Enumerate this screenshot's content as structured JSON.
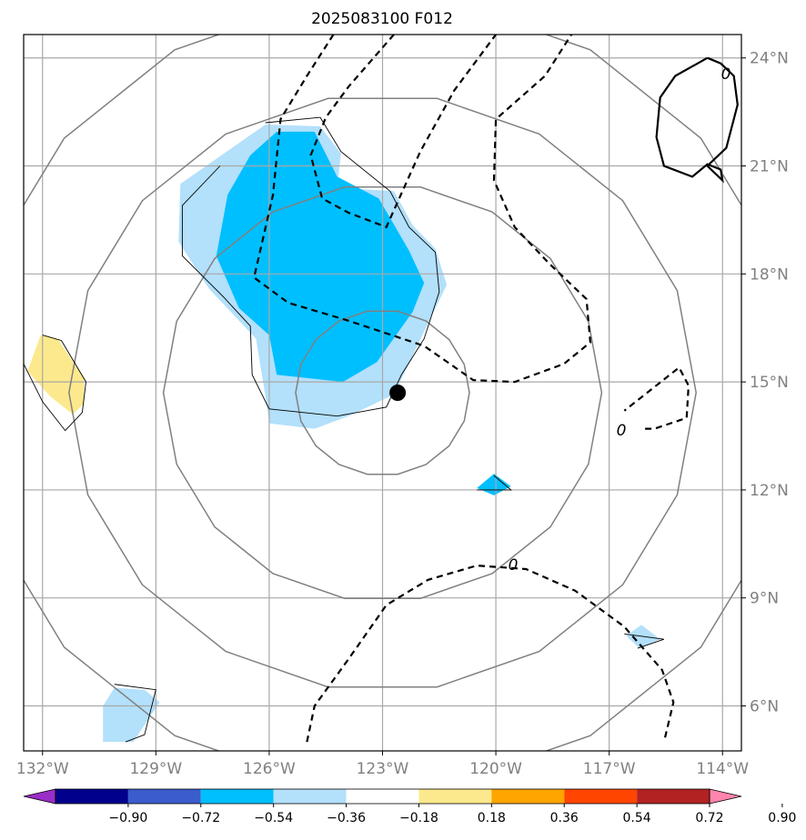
{
  "chart_data": {
    "type": "contour-map",
    "title": "2025083100 F012",
    "projection": "lat-lon",
    "xlim": [
      -132.5,
      -113.5
    ],
    "ylim": [
      4.75,
      24.65
    ],
    "x_ticks": [
      -132,
      -129,
      -126,
      -123,
      -120,
      -117,
      -114
    ],
    "x_tick_labels": [
      "132°W",
      "129°W",
      "126°W",
      "123°W",
      "120°W",
      "117°W",
      "114°W"
    ],
    "y_ticks": [
      6,
      9,
      12,
      15,
      18,
      21,
      24
    ],
    "y_tick_labels": [
      "6°N",
      "9°N",
      "12°N",
      "15°N",
      "18°N",
      "21°N",
      "24°N"
    ],
    "grid": true,
    "storm_center": {
      "lon": -122.6,
      "lat": 14.7
    },
    "range_rings_center": {
      "lon": -123.0,
      "lat": 14.7
    },
    "range_rings_radius_deg": [
      2.3,
      5.8,
      8.3,
      11.0
    ],
    "colorbar": {
      "levels": [
        "−0.90",
        "−0.72",
        "−0.54",
        "−0.36",
        "−0.18",
        "0.18",
        "0.36",
        "0.54",
        "0.72",
        "0.90"
      ],
      "colors": [
        "#9a2ec8",
        "#00008c",
        "#3a5ccc",
        "#00bfff",
        "#b3e0fb",
        "#ffffff",
        "#fde98d",
        "#ffa500",
        "#ff4500",
        "#b22222",
        "#ff85ac"
      ],
      "extend": "both"
    },
    "filled_regions": [
      {
        "level": "-0.36 to -0.18",
        "color": "#b3e0fb",
        "points": [
          [
            -126.1,
            22.15
          ],
          [
            -124.65,
            22.1
          ],
          [
            -124.1,
            21.35
          ],
          [
            -124.2,
            20.4
          ],
          [
            -122.7,
            20.3
          ],
          [
            -122.2,
            19.35
          ],
          [
            -121.6,
            18.7
          ],
          [
            -121.3,
            17.7
          ],
          [
            -121.9,
            16.4
          ],
          [
            -122.7,
            14.65
          ],
          [
            -123.9,
            14.05
          ],
          [
            -124.8,
            13.7
          ],
          [
            -126.0,
            13.85
          ],
          [
            -126.1,
            14.6
          ],
          [
            -126.35,
            16.2
          ],
          [
            -127.6,
            17.6
          ],
          [
            -128.4,
            18.9
          ],
          [
            -128.35,
            20.5
          ]
        ]
      },
      {
        "level": "<= -0.36",
        "color": "#00bfff",
        "points": [
          [
            -125.8,
            21.95
          ],
          [
            -124.8,
            21.95
          ],
          [
            -124.2,
            20.7
          ],
          [
            -123.1,
            20.1
          ],
          [
            -122.3,
            18.65
          ],
          [
            -121.9,
            17.75
          ],
          [
            -122.2,
            16.95
          ],
          [
            -123.15,
            15.55
          ],
          [
            -124.05,
            15.0
          ],
          [
            -125.8,
            15.2
          ],
          [
            -126.0,
            16.3
          ],
          [
            -126.8,
            17.05
          ],
          [
            -127.4,
            18.5
          ],
          [
            -127.1,
            20.2
          ],
          [
            -126.5,
            21.3
          ]
        ]
      },
      {
        "level": "<= -0.36",
        "color": "#00bfff",
        "points": [
          [
            -120.05,
            12.45
          ],
          [
            -119.6,
            12.1
          ],
          [
            -120.05,
            11.85
          ],
          [
            -120.5,
            12.05
          ]
        ]
      },
      {
        "level": "-0.36 to -0.18",
        "color": "#b3e0fb",
        "points": [
          [
            -116.15,
            8.25
          ],
          [
            -115.65,
            7.85
          ],
          [
            -116.2,
            7.6
          ],
          [
            -116.55,
            7.95
          ]
        ]
      },
      {
        "level": "-0.36 to -0.18",
        "color": "#b3e0fb",
        "points": [
          [
            -130.1,
            6.5
          ],
          [
            -129.3,
            6.45
          ],
          [
            -128.9,
            6.1
          ],
          [
            -129.6,
            5.0
          ],
          [
            -130.4,
            5.0
          ],
          [
            -130.4,
            6.0
          ]
        ]
      },
      {
        "level": "0.18 to 0.36",
        "color": "#fde98d",
        "points": [
          [
            -132.05,
            16.3
          ],
          [
            -131.6,
            16.2
          ],
          [
            -130.9,
            15.1
          ],
          [
            -130.9,
            14.4
          ],
          [
            -131.2,
            14.1
          ],
          [
            -131.8,
            14.6
          ],
          [
            -132.4,
            15.3
          ],
          [
            -132.5,
            15.0
          ]
        ]
      }
    ],
    "contour_lines": [
      {
        "style": "thin",
        "points": [
          [
            -126.1,
            22.2
          ],
          [
            -124.65,
            22.35
          ],
          [
            -124.1,
            21.4
          ],
          [
            -122.8,
            20.3
          ],
          [
            -122.3,
            19.3
          ],
          [
            -121.6,
            18.6
          ],
          [
            -121.5,
            17.5
          ],
          [
            -121.9,
            16.2
          ],
          [
            -122.5,
            15.2
          ],
          [
            -122.9,
            14.3
          ],
          [
            -124.2,
            14.05
          ],
          [
            -126.0,
            14.25
          ],
          [
            -126.45,
            15.2
          ],
          [
            -126.5,
            16.55
          ],
          [
            -127.2,
            17.35
          ],
          [
            -128.3,
            18.5
          ],
          [
            -128.3,
            19.9
          ],
          [
            -127.3,
            21.0
          ]
        ]
      },
      {
        "style": "thin",
        "points": [
          [
            -132.0,
            16.3
          ],
          [
            -131.5,
            16.15
          ],
          [
            -130.85,
            15.0
          ],
          [
            -130.95,
            14.15
          ],
          [
            -131.4,
            13.65
          ],
          [
            -132.0,
            14.45
          ],
          [
            -132.5,
            15.5
          ]
        ]
      },
      {
        "style": "thin",
        "points": [
          [
            -130.1,
            6.6
          ],
          [
            -129.0,
            6.45
          ],
          [
            -129.3,
            5.2
          ],
          [
            -129.8,
            5.0
          ]
        ]
      },
      {
        "style": "thin",
        "points": [
          [
            -120.5,
            12.0
          ],
          [
            -119.6,
            12.0
          ],
          [
            -120.05,
            12.4
          ]
        ]
      },
      {
        "style": "thin",
        "points": [
          [
            -116.6,
            8.0
          ],
          [
            -115.55,
            7.85
          ],
          [
            -116.25,
            7.6
          ]
        ]
      },
      {
        "style": "dash",
        "points": [
          [
            -124.3,
            24.65
          ],
          [
            -125.0,
            23.5
          ],
          [
            -125.7,
            22.3
          ],
          [
            -125.9,
            20.2
          ],
          [
            -126.4,
            17.9
          ],
          [
            -125.5,
            17.2
          ],
          [
            -123.9,
            16.7
          ],
          [
            -121.9,
            16.0
          ],
          [
            -120.6,
            15.05
          ],
          [
            -119.5,
            15.0
          ],
          [
            -118.2,
            15.5
          ],
          [
            -117.5,
            16.1
          ],
          [
            -117.6,
            17.3
          ],
          [
            -118.6,
            18.3
          ],
          [
            -119.5,
            19.3
          ],
          [
            -120.05,
            20.6
          ],
          [
            -120.0,
            22.3
          ],
          [
            -118.7,
            23.5
          ],
          [
            -118.0,
            24.65
          ]
        ]
      },
      {
        "style": "dash",
        "points": [
          [
            -122.7,
            24.65
          ],
          [
            -123.9,
            23.2
          ],
          [
            -124.5,
            22.35
          ],
          [
            -124.9,
            21.3
          ],
          [
            -124.6,
            20.1
          ],
          [
            -123.9,
            19.7
          ],
          [
            -122.9,
            19.3
          ],
          [
            -122.0,
            21.4
          ],
          [
            -121.1,
            23.1
          ],
          [
            -120.0,
            24.65
          ]
        ]
      },
      {
        "style": "dash",
        "points": [
          [
            -125.0,
            5.0
          ],
          [
            -124.8,
            6.0
          ],
          [
            -123.9,
            7.3
          ],
          [
            -122.9,
            8.8
          ],
          [
            -121.8,
            9.5
          ],
          [
            -120.5,
            9.9
          ],
          [
            -119.2,
            9.8
          ],
          [
            -117.9,
            9.2
          ],
          [
            -116.6,
            8.2
          ],
          [
            -115.6,
            7.0
          ],
          [
            -115.3,
            6.1
          ],
          [
            -115.55,
            5.0
          ]
        ]
      },
      {
        "style": "dash",
        "label": "0",
        "points": [
          [
            -116.05,
            13.7
          ],
          [
            -115.8,
            13.7
          ],
          [
            -114.95,
            14.0
          ],
          [
            -114.9,
            14.9
          ],
          [
            -115.15,
            15.4
          ],
          [
            -116.6,
            14.2
          ]
        ]
      },
      {
        "style": "solid",
        "label": "0",
        "points": [
          [
            -114.4,
            24.0
          ],
          [
            -114.05,
            23.85
          ],
          [
            -113.7,
            23.5
          ],
          [
            -113.6,
            22.7
          ],
          [
            -113.9,
            21.5
          ],
          [
            -114.4,
            21.0
          ],
          [
            -114.0,
            20.6
          ],
          [
            -114.05,
            20.9
          ],
          [
            -114.4,
            21.05
          ],
          [
            -114.8,
            20.7
          ],
          [
            -115.55,
            21.0
          ],
          [
            -115.75,
            21.8
          ],
          [
            -115.65,
            22.9
          ],
          [
            -115.25,
            23.5
          ],
          [
            -114.4,
            24.0
          ]
        ]
      }
    ],
    "contour_labels": [
      "0",
      "0",
      "0"
    ]
  }
}
